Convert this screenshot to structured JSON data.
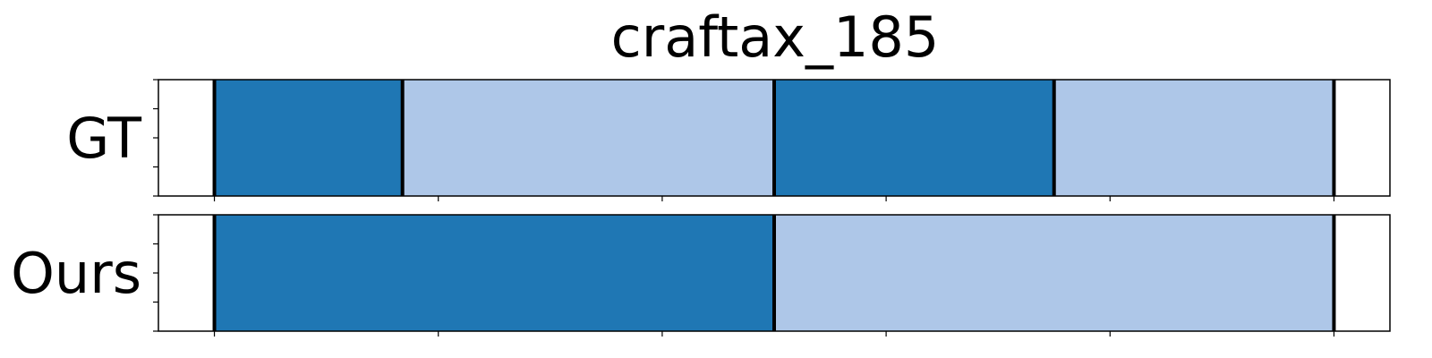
{
  "chart_data": {
    "type": "bar",
    "title": "craftax_185",
    "xlim": [
      -5,
      105
    ],
    "x_ticks": [
      0,
      20,
      40,
      60,
      80,
      100
    ],
    "y_ticks_per_row": 5,
    "colors": {
      "dark": "#1f77b4",
      "light": "#aec7e8",
      "boundary": "#000000"
    },
    "rows": [
      {
        "label": "GT",
        "segments": [
          {
            "start": 0,
            "end": 16.8,
            "color": "dark"
          },
          {
            "start": 16.8,
            "end": 50.0,
            "color": "light"
          },
          {
            "start": 50.0,
            "end": 75.0,
            "color": "dark"
          },
          {
            "start": 75.0,
            "end": 100.0,
            "color": "light"
          }
        ],
        "boundaries": [
          0,
          16.8,
          50.0,
          75.0,
          100.0
        ]
      },
      {
        "label": "Ours",
        "segments": [
          {
            "start": 0,
            "end": 50.0,
            "color": "dark"
          },
          {
            "start": 50.0,
            "end": 100.0,
            "color": "light"
          }
        ],
        "boundaries": [
          0,
          50.0,
          100.0
        ]
      }
    ]
  }
}
